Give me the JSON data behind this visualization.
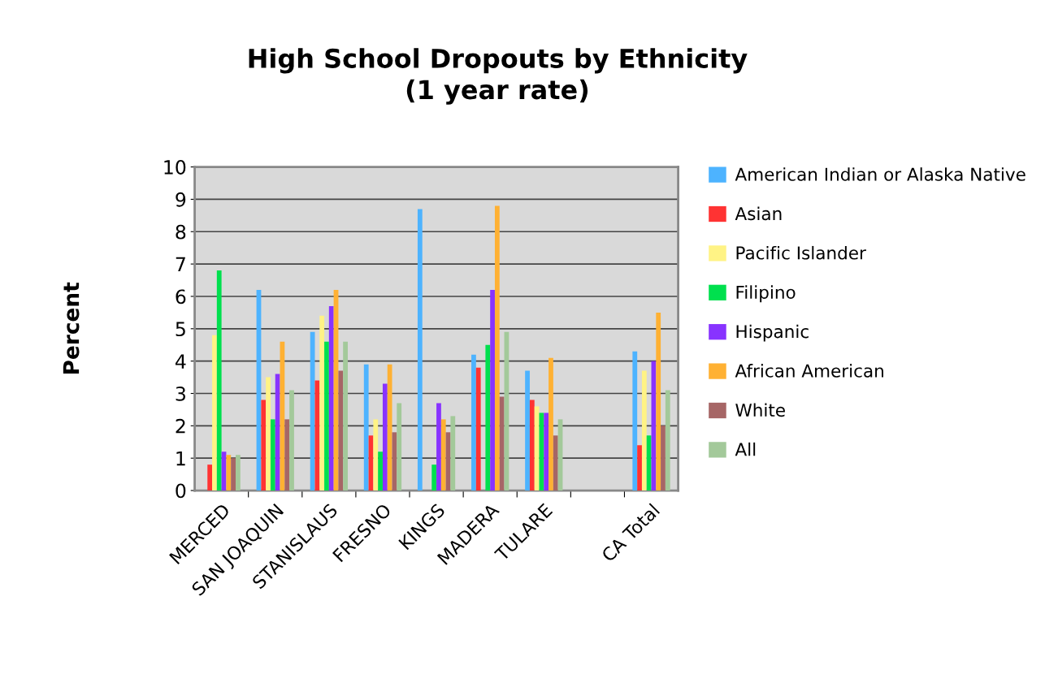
{
  "chart_data": {
    "type": "bar",
    "title": "High School Dropouts by Ethnicity\n(1 year rate)",
    "ylabel": "Percent",
    "categories": [
      "MERCED",
      "SAN JOAQUIN",
      "STANISLAUS",
      "FRESNO",
      "KINGS",
      "MADERA",
      "TULARE",
      null,
      "CA Total"
    ],
    "series": [
      {
        "name": "American Indian or Alaska Native",
        "color": "#4db3ff",
        "values": [
          null,
          6.2,
          4.9,
          3.9,
          8.7,
          4.2,
          3.7,
          null,
          4.3
        ]
      },
      {
        "name": "Asian",
        "color": "#ff3333",
        "values": [
          0.8,
          2.8,
          3.4,
          1.7,
          null,
          3.8,
          2.8,
          null,
          1.4
        ]
      },
      {
        "name": "Pacific Islander",
        "color": "#fff385",
        "values": [
          4.8,
          3.5,
          5.4,
          2.2,
          null,
          null,
          2.6,
          null,
          3.7
        ]
      },
      {
        "name": "Filipino",
        "color": "#00e04e",
        "values": [
          6.8,
          2.2,
          4.6,
          1.2,
          0.8,
          4.5,
          2.4,
          null,
          1.7
        ]
      },
      {
        "name": "Hispanic",
        "color": "#8833ff",
        "values": [
          1.2,
          3.6,
          5.7,
          3.3,
          2.7,
          6.2,
          2.4,
          null,
          4.0
        ]
      },
      {
        "name": "African American",
        "color": "#ffb133",
        "values": [
          1.1,
          4.6,
          6.2,
          3.9,
          2.2,
          8.8,
          4.1,
          null,
          5.5
        ]
      },
      {
        "name": "White",
        "color": "#a66666",
        "values": [
          1.0,
          2.2,
          3.7,
          1.8,
          1.8,
          2.9,
          1.7,
          null,
          2.0
        ]
      },
      {
        "name": "All",
        "color": "#a3c99a",
        "values": [
          1.1,
          3.1,
          4.6,
          2.7,
          2.3,
          4.9,
          2.2,
          null,
          3.1
        ]
      }
    ],
    "ylim": [
      0,
      10
    ],
    "yticks": [
      0,
      1,
      2,
      3,
      4,
      5,
      6,
      7,
      8,
      9,
      10
    ],
    "grid": "y",
    "legend": "right"
  }
}
